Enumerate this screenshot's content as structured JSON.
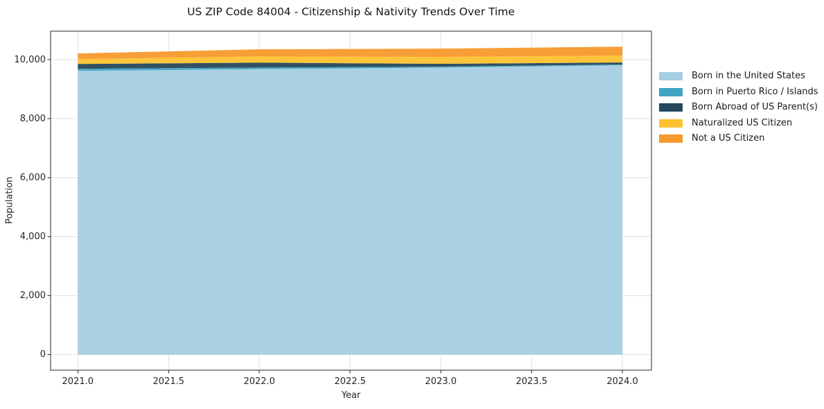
{
  "chart_data": {
    "type": "area",
    "stacked": true,
    "title": "US ZIP Code 84004 - Citizenship & Nativity Trends Over Time",
    "xlabel": "Year",
    "ylabel": "Population",
    "x": [
      2021,
      2022,
      2023,
      2024
    ],
    "series": [
      {
        "name": "Born in the United States",
        "color": "#a5cde3",
        "values": [
          9620,
          9680,
          9730,
          9810
        ]
      },
      {
        "name": "Born in Puerto Rico / Islands",
        "color": "#3fa5c2",
        "values": [
          70,
          55,
          35,
          25
        ]
      },
      {
        "name": "Born Abroad of US Parent(s)",
        "color": "#25485c",
        "values": [
          165,
          165,
          95,
          70
        ]
      },
      {
        "name": "Naturalized US Citizen",
        "color": "#fdc230",
        "values": [
          165,
          210,
          235,
          235
        ]
      },
      {
        "name": "Not a US Citizen",
        "color": "#f8992b",
        "values": [
          190,
          240,
          280,
          300
        ]
      }
    ],
    "x_tick_values": [
      2021.0,
      2021.5,
      2022.0,
      2022.5,
      2023.0,
      2023.5,
      2024.0
    ],
    "x_tick_labels": [
      "2021.0",
      "2021.5",
      "2022.0",
      "2022.5",
      "2023.0",
      "2023.5",
      "2024.0"
    ],
    "y_tick_values": [
      0,
      2000,
      4000,
      6000,
      8000,
      10000
    ],
    "y_tick_labels": [
      "0",
      "2,000",
      "4,000",
      "6,000",
      "8,000",
      "10,000"
    ],
    "xlim": [
      2020.85,
      2024.16
    ],
    "ylim": [
      -525,
      10965
    ],
    "grid": true,
    "legend_position": "right of plot"
  },
  "colors": {
    "background": "#ffffff",
    "grid": "#e2e2e2",
    "spine": "#2a2a2a",
    "text": "#1a1a1a"
  }
}
